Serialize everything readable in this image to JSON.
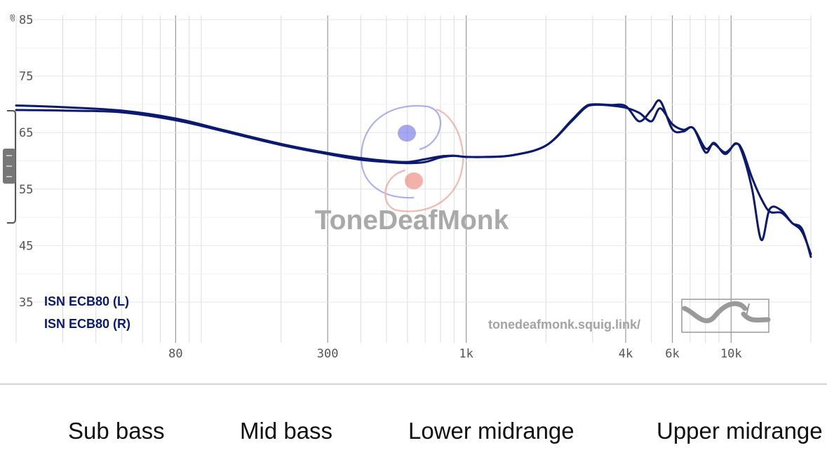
{
  "chart_data": {
    "type": "line",
    "xscale": "log",
    "xlim": [
      20,
      20000
    ],
    "ylim": [
      35,
      85
    ],
    "y_unit": "dB",
    "y_ticks": [
      85,
      75,
      65,
      55,
      45,
      35
    ],
    "x_ticks": [
      {
        "value": 80,
        "label": "80"
      },
      {
        "value": 300,
        "label": "300"
      },
      {
        "value": 1000,
        "label": "1k"
      },
      {
        "value": 4000,
        "label": "4k"
      },
      {
        "value": 6000,
        "label": "6k"
      },
      {
        "value": 10000,
        "label": "10k"
      }
    ],
    "grid": true,
    "series": [
      {
        "name": "ISN ECB80 (L)",
        "color": "#0b1a6e",
        "x": [
          20,
          30,
          50,
          80,
          120,
          200,
          300,
          400,
          500,
          600,
          700,
          800,
          900,
          1000,
          1200,
          1500,
          2000,
          2500,
          2800,
          3000,
          3500,
          4000,
          4500,
          5000,
          5400,
          6000,
          6600,
          7200,
          8000,
          8600,
          9500,
          10400,
          11000,
          12000,
          13000,
          14000,
          15500,
          17000,
          18500,
          20000
        ],
        "y": [
          69.0,
          68.9,
          68.6,
          67.2,
          65.3,
          62.8,
          61.2,
          60.2,
          59.8,
          59.6,
          59.8,
          60.6,
          60.9,
          60.7,
          60.7,
          61.0,
          62.7,
          67.0,
          69.3,
          69.9,
          69.8,
          69.4,
          68.5,
          67.0,
          69.3,
          66.5,
          65.5,
          65.8,
          62.2,
          63.0,
          61.5,
          63.0,
          62.0,
          57.0,
          53.3,
          51.0,
          50.8,
          49.0,
          47.5,
          43.5
        ]
      },
      {
        "name": "ISN ECB80 (R)",
        "color": "#0b1a6e",
        "x": [
          20,
          30,
          50,
          80,
          120,
          200,
          300,
          400,
          500,
          600,
          700,
          800,
          900,
          1000,
          1200,
          1500,
          2000,
          2500,
          2800,
          3000,
          3500,
          4000,
          4500,
          5000,
          5400,
          6000,
          6600,
          7200,
          8000,
          8600,
          9500,
          10400,
          11000,
          12000,
          13000,
          14000,
          15500,
          17000,
          18500,
          20000
        ],
        "y": [
          69.8,
          69.5,
          68.9,
          67.5,
          65.5,
          63.0,
          61.4,
          60.5,
          60.0,
          59.8,
          60.3,
          60.8,
          60.9,
          60.7,
          60.7,
          61.0,
          62.7,
          67.2,
          69.5,
          70.0,
          69.9,
          69.7,
          67.0,
          69.0,
          70.6,
          65.6,
          65.2,
          65.8,
          61.5,
          63.2,
          61.2,
          63.1,
          61.5,
          55.0,
          46.0,
          51.5,
          51.2,
          49.0,
          48.0,
          43.0
        ]
      }
    ]
  },
  "units": {
    "db": "dB"
  },
  "watermark": {
    "brand": "ToneDeafMonk",
    "site": "tonedeafmonk.squig.link/"
  },
  "bands": [
    "Sub bass",
    "Mid bass",
    "Lower midrange",
    "Upper midrange"
  ]
}
